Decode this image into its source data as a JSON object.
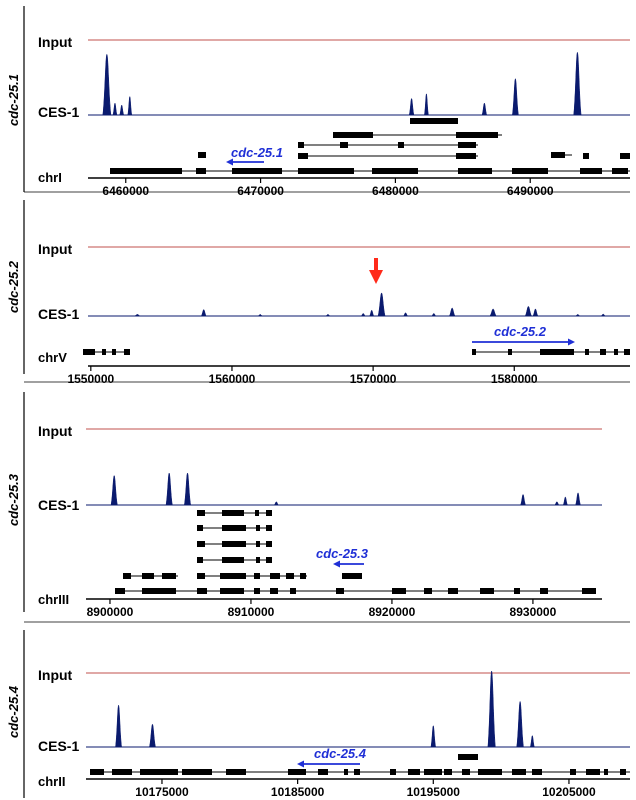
{
  "colors": {
    "input_track": "#c0504d",
    "signal": "#0a1a6e",
    "gene_label": "#1f2fd6",
    "arrow_marker": "#ff2a1a",
    "gene_model": "#000000"
  },
  "chart_data": [
    {
      "type": "area",
      "gene": "cdc-25.1",
      "chromosome": "chrI",
      "tracks": [
        "Input",
        "CES-1"
      ],
      "xlim": [
        6457200,
        6497400
      ],
      "ticks": [
        6460000,
        6470000,
        6480000,
        6490000
      ],
      "tick_labels": [
        "6460000",
        "6470000",
        "6480000",
        "6490000"
      ],
      "peaks": [
        {
          "x": 6458600,
          "height": 0.92,
          "width": 600
        },
        {
          "x": 6459200,
          "height": 0.18,
          "width": 300
        },
        {
          "x": 6459700,
          "height": 0.15,
          "width": 300
        },
        {
          "x": 6460300,
          "height": 0.28,
          "width": 300
        },
        {
          "x": 6481200,
          "height": 0.25,
          "width": 350
        },
        {
          "x": 6482300,
          "height": 0.32,
          "width": 300
        },
        {
          "x": 6486600,
          "height": 0.18,
          "width": 350
        },
        {
          "x": 6488900,
          "height": 0.55,
          "width": 450
        },
        {
          "x": 6493500,
          "height": 0.95,
          "width": 550
        }
      ],
      "gene_annotation": {
        "label": "cdc-25.1",
        "direction": "reverse",
        "start": 6466800,
        "end": 6469800
      },
      "marker": null
    },
    {
      "type": "area",
      "gene": "cdc-25.2",
      "chromosome": "chrV",
      "tracks": [
        "Input",
        "CES-1"
      ],
      "xlim": [
        1549800,
        1588200
      ],
      "ticks": [
        1550000,
        1560000,
        1570000,
        1580000
      ],
      "tick_labels": [
        "1550000",
        "1560000",
        "1570000",
        "1580000"
      ],
      "peaks": [
        {
          "x": 1553300,
          "height": 0.05,
          "width": 400
        },
        {
          "x": 1558000,
          "height": 0.2,
          "width": 350
        },
        {
          "x": 1562000,
          "height": 0.05,
          "width": 300
        },
        {
          "x": 1566800,
          "height": 0.05,
          "width": 300
        },
        {
          "x": 1569300,
          "height": 0.08,
          "width": 300
        },
        {
          "x": 1569900,
          "height": 0.18,
          "width": 300
        },
        {
          "x": 1570600,
          "height": 0.72,
          "width": 500
        },
        {
          "x": 1572300,
          "height": 0.1,
          "width": 300
        },
        {
          "x": 1574300,
          "height": 0.08,
          "width": 300
        },
        {
          "x": 1575600,
          "height": 0.25,
          "width": 400
        },
        {
          "x": 1578500,
          "height": 0.22,
          "width": 450
        },
        {
          "x": 1581000,
          "height": 0.3,
          "width": 450
        },
        {
          "x": 1581500,
          "height": 0.22,
          "width": 350
        },
        {
          "x": 1584500,
          "height": 0.05,
          "width": 300
        },
        {
          "x": 1586300,
          "height": 0.06,
          "width": 300
        }
      ],
      "gene_annotation": {
        "label": "cdc-25.2",
        "direction": "forward",
        "start": 1576800,
        "end": 1584500
      },
      "marker": {
        "x": 1570600
      }
    },
    {
      "type": "area",
      "gene": "cdc-25.3",
      "chromosome": "chrIII",
      "tracks": [
        "Input",
        "CES-1"
      ],
      "xlim": [
        8898300,
        8934900
      ],
      "ticks": [
        8900000,
        8910000,
        8920000,
        8930000
      ],
      "tick_labels": [
        "8900000",
        "8910000",
        "8920000",
        "8930000"
      ],
      "peaks": [
        {
          "x": 8900300,
          "height": 0.92,
          "width": 450
        },
        {
          "x": 8904200,
          "height": 1.0,
          "width": 450
        },
        {
          "x": 8905500,
          "height": 1.0,
          "width": 450
        },
        {
          "x": 8911800,
          "height": 0.1,
          "width": 300
        },
        {
          "x": 8929300,
          "height": 0.33,
          "width": 350
        },
        {
          "x": 8931700,
          "height": 0.1,
          "width": 300
        },
        {
          "x": 8932300,
          "height": 0.25,
          "width": 300
        },
        {
          "x": 8933200,
          "height": 0.38,
          "width": 350
        }
      ],
      "gene_annotation": {
        "label": "cdc-25.3",
        "direction": "reverse",
        "start": 8915800,
        "end": 8917800
      },
      "marker": null
    },
    {
      "type": "area",
      "gene": "cdc-25.4",
      "chromosome": "chrII",
      "tracks": [
        "Input",
        "CES-1"
      ],
      "xlim": [
        10169400,
        10209500
      ],
      "ticks": [
        10175000,
        10185000,
        10195000,
        10205000
      ],
      "tick_labels": [
        "10175000",
        "10185000",
        "10195000",
        "10205000"
      ],
      "peaks": [
        {
          "x": 10171800,
          "height": 0.55,
          "width": 450
        },
        {
          "x": 10174300,
          "height": 0.3,
          "width": 450
        },
        {
          "x": 10195000,
          "height": 0.28,
          "width": 350
        },
        {
          "x": 10199300,
          "height": 1.0,
          "width": 550
        },
        {
          "x": 10201400,
          "height": 0.6,
          "width": 500
        },
        {
          "x": 10202300,
          "height": 0.15,
          "width": 300
        }
      ],
      "gene_annotation": {
        "label": "cdc-25.4",
        "direction": "reverse",
        "start": 10187200,
        "end": 10191400
      },
      "marker": null
    }
  ]
}
